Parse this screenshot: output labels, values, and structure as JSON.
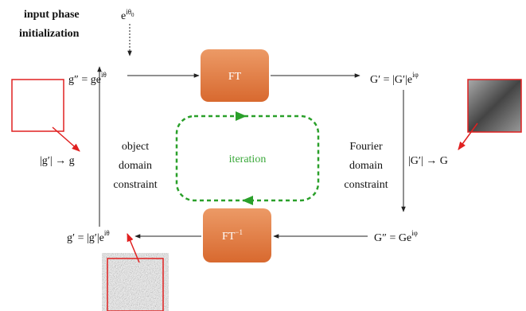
{
  "input": {
    "line1": "input phase",
    "line2": "initialization",
    "phase": {
      "base": "e",
      "sup": "iθ",
      "sub": "0"
    }
  },
  "nodes": [
    {
      "base": "g″ = ge",
      "sup": "iθ"
    },
    {
      "base": "G′ = |G′|e",
      "sup": "iφ"
    },
    {
      "base": "G″ = Ge",
      "sup": "iφ"
    },
    {
      "base": "g′ = |g′|e",
      "sup": "iθ"
    }
  ],
  "boxes": [
    {
      "label": "FT"
    },
    {
      "label": "FT",
      "sup": "−1"
    }
  ],
  "constraints": {
    "object": {
      "lines": [
        "object",
        "domain",
        "constraint"
      ],
      "formula": "|g′| → g"
    },
    "fourier": {
      "lines": [
        "Fourier",
        "domain",
        "constraint"
      ],
      "formula": "|G′| → G"
    }
  },
  "iteration": "iteration"
}
